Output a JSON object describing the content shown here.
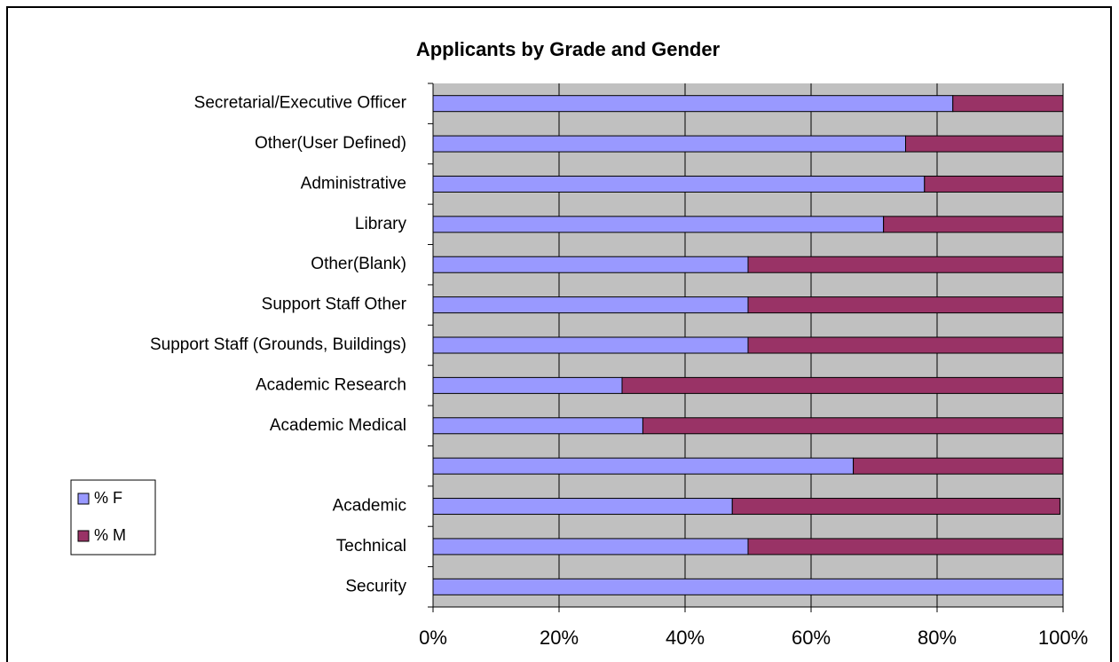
{
  "chart_data": {
    "type": "stacked_barh",
    "title": "Applicants by Grade and Gender",
    "categories": [
      "Secretarial/Executive Officer",
      "Other(User Defined)",
      "Administrative",
      "Library",
      "Other(Blank)",
      "Support Staff Other",
      "Support Staff (Grounds, Buildings)",
      "Academic Research",
      "Academic Medical",
      null,
      "Academic",
      "Technical",
      "Security"
    ],
    "series": [
      {
        "name": "% F",
        "color": "#9999ff",
        "values": [
          82.5,
          75,
          78,
          71.5,
          50,
          50,
          50,
          30,
          33.3,
          66.7,
          47.5,
          50,
          100
        ]
      },
      {
        "name": "% M",
        "color": "#993366",
        "values": [
          17.5,
          25,
          22,
          28.5,
          50,
          50,
          50,
          70,
          66.7,
          33.3,
          52,
          50,
          0
        ]
      }
    ],
    "xlim": [
      0,
      100
    ],
    "xticks": [
      {
        "value": 0,
        "label": "0%"
      },
      {
        "value": 20,
        "label": "20%"
      },
      {
        "value": 40,
        "label": "40%"
      },
      {
        "value": 60,
        "label": "60%"
      },
      {
        "value": 80,
        "label": "80%"
      },
      {
        "value": 100,
        "label": "100%"
      }
    ],
    "grid": true,
    "legend": "left"
  }
}
